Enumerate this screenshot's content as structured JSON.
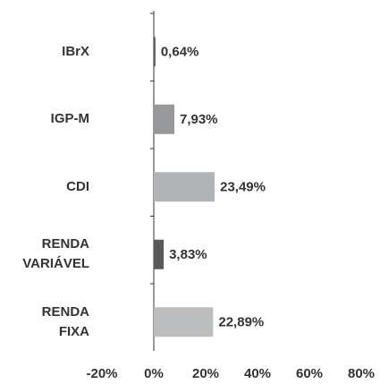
{
  "chart_data": {
    "type": "hbar",
    "categories": [
      "IBrX",
      "IGP-M",
      "CDI",
      "RENDA VARIÁVEL",
      "RENDA FIXA"
    ],
    "values": [
      0.64,
      7.93,
      23.49,
      3.83,
      22.89
    ],
    "value_labels": [
      "0,64%",
      "7,93%",
      "23,49%",
      "3,83%",
      "22,89%"
    ],
    "colors": [
      "#58595b",
      "#97989a",
      "#b2b3b5",
      "#58595b",
      "#bcbdbf"
    ],
    "xlim": [
      -20,
      80
    ],
    "xticks": [
      {
        "value": -20,
        "label": "-20%"
      },
      {
        "value": 0,
        "label": "0%"
      },
      {
        "value": 20,
        "label": "20%"
      },
      {
        "value": 40,
        "label": "40%"
      },
      {
        "value": 60,
        "label": "60%"
      },
      {
        "value": 80,
        "label": "80%"
      }
    ]
  }
}
